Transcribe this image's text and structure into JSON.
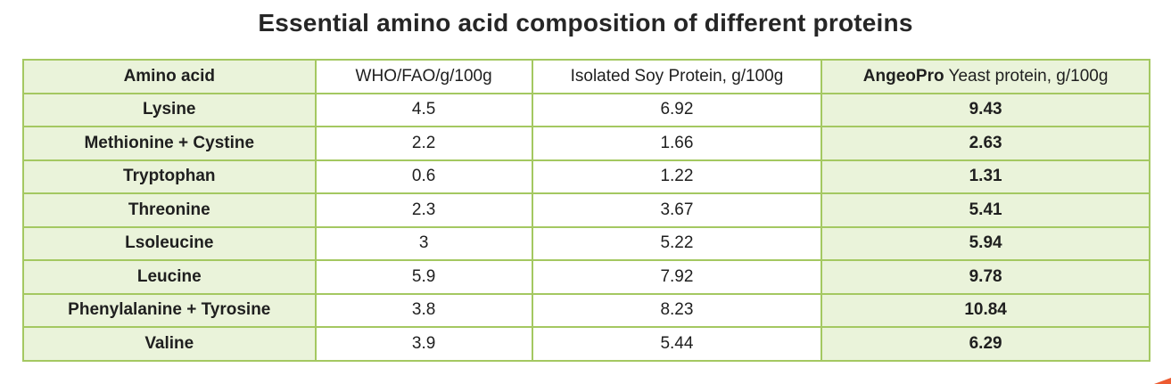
{
  "title": "Essential amino acid composition of different proteins",
  "table": {
    "header": {
      "amino_acid": "Amino acid",
      "who_fao": "WHO/FAO/g/100g",
      "soy": "Isolated Soy Protein, g/100g",
      "angeopro_brand": "AngeoPro",
      "angeopro_rest": " Yeast protein, g/100g"
    },
    "rows": [
      {
        "name": "Lysine",
        "who_fao": "4.5",
        "soy": "6.92",
        "angeopro": "9.43"
      },
      {
        "name": "Methionine + Cystine",
        "who_fao": "2.2",
        "soy": "1.66",
        "angeopro": "2.63"
      },
      {
        "name": "Tryptophan",
        "who_fao": "0.6",
        "soy": "1.22",
        "angeopro": "1.31"
      },
      {
        "name": "Threonine",
        "who_fao": "2.3",
        "soy": "3.67",
        "angeopro": "5.41"
      },
      {
        "name": "Lsoleucine",
        "who_fao": "3",
        "soy": "5.22",
        "angeopro": "5.94"
      },
      {
        "name": "Leucine",
        "who_fao": "5.9",
        "soy": "7.92",
        "angeopro": "9.78"
      },
      {
        "name": "Phenylalanine + Tyrosine",
        "who_fao": "3.8",
        "soy": "8.23",
        "angeopro": "10.84"
      },
      {
        "name": "Valine",
        "who_fao": "3.9",
        "soy": "5.44",
        "angeopro": "6.29"
      }
    ]
  },
  "colors": {
    "cell_green": "#eaf3da",
    "border_green": "#a4c861",
    "text": "#1f1f1f",
    "corner_accent_orange": "#ed5b31"
  },
  "chart_data": {
    "type": "table",
    "title": "Essential amino acid composition of different proteins",
    "columns": [
      "Amino acid",
      "WHO/FAO/g/100g",
      "Isolated Soy Protein, g/100g",
      "AngeoPro Yeast protein, g/100g"
    ],
    "categories": [
      "Lysine",
      "Methionine + Cystine",
      "Tryptophan",
      "Threonine",
      "Lsoleucine",
      "Leucine",
      "Phenylalanine + Tyrosine",
      "Valine"
    ],
    "series": [
      {
        "name": "WHO/FAO/g/100g",
        "values": [
          4.5,
          2.2,
          0.6,
          2.3,
          3,
          5.9,
          3.8,
          3.9
        ]
      },
      {
        "name": "Isolated Soy Protein, g/100g",
        "values": [
          6.92,
          1.66,
          1.22,
          3.67,
          5.22,
          7.92,
          8.23,
          5.44
        ]
      },
      {
        "name": "AngeoPro Yeast protein, g/100g",
        "values": [
          9.43,
          2.63,
          1.31,
          5.41,
          5.94,
          9.78,
          10.84,
          6.29
        ]
      }
    ]
  }
}
